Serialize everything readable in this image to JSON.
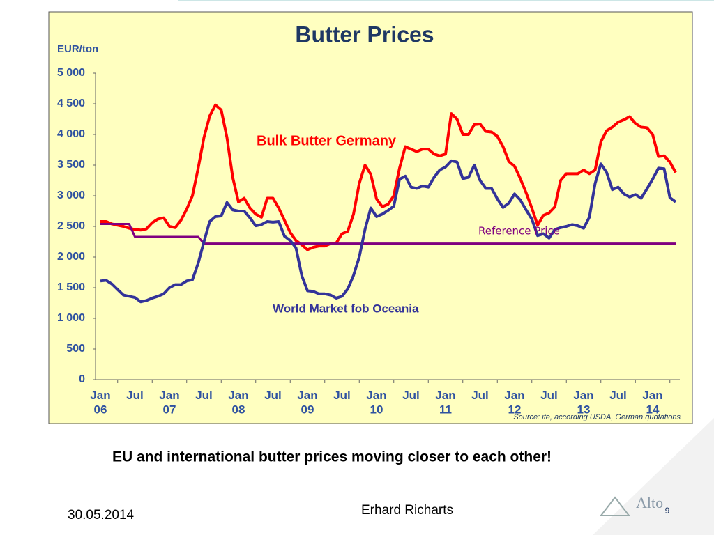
{
  "chart_data": {
    "type": "line",
    "title": "Butter Prices",
    "y_label": "EUR/ton",
    "source": "Source: ife, according USDA, German quotations",
    "categories": [
      "Jan 06",
      null,
      null,
      null,
      null,
      null,
      "Jul",
      null,
      null,
      null,
      null,
      null,
      "Jan 07",
      null,
      null,
      null,
      null,
      null,
      "Jul",
      null,
      null,
      null,
      null,
      null,
      "Jan 08",
      null,
      null,
      null,
      null,
      null,
      "Jul",
      null,
      null,
      null,
      null,
      null,
      "Jan 09",
      null,
      null,
      null,
      null,
      null,
      "Jul",
      null,
      null,
      null,
      null,
      null,
      "Jan 10",
      null,
      null,
      null,
      null,
      null,
      "Jul",
      null,
      null,
      null,
      null,
      null,
      "Jan 11",
      null,
      null,
      null,
      null,
      null,
      "Jul",
      null,
      null,
      null,
      null,
      null,
      "Jan 12",
      null,
      null,
      null,
      null,
      null,
      "Jul",
      null,
      null,
      null,
      null,
      null,
      "Jan 13",
      null,
      null,
      null,
      null,
      null,
      "Jul",
      null,
      null,
      null,
      null,
      null,
      "Jan 14",
      null,
      null,
      null,
      null
    ],
    "series": [
      {
        "name": "Bulk Butter Germany",
        "color": "#ff0000",
        "values": [
          2580,
          2580,
          2540,
          2520,
          2500,
          2470,
          2450,
          2440,
          2460,
          2560,
          2620,
          2640,
          2500,
          2480,
          2600,
          2780,
          3000,
          3450,
          3950,
          4300,
          4480,
          4400,
          3950,
          3300,
          2900,
          2960,
          2800,
          2700,
          2650,
          2960,
          2960,
          2800,
          2600,
          2400,
          2270,
          2200,
          2120,
          2160,
          2180,
          2180,
          2220,
          2230,
          2380,
          2420,
          2700,
          3200,
          3500,
          3350,
          2950,
          2820,
          2860,
          3000,
          3450,
          3800,
          3760,
          3720,
          3760,
          3760,
          3680,
          3650,
          3680,
          4340,
          4250,
          4000,
          4000,
          4160,
          4170,
          4050,
          4040,
          3970,
          3800,
          3560,
          3480,
          3280,
          3050,
          2800,
          2520,
          2680,
          2720,
          2820,
          3250,
          3360,
          3360,
          3360,
          3420,
          3360,
          3420,
          3880,
          4060,
          4120,
          4200,
          4240,
          4290,
          4180,
          4120,
          4110,
          4000,
          3640,
          3650,
          3550,
          3380
        ]
      },
      {
        "name": "Reference Price",
        "color": "#800080",
        "values": [
          2540,
          2540,
          2540,
          2540,
          2540,
          2540,
          2330,
          2330,
          2330,
          2330,
          2330,
          2330,
          2330,
          2330,
          2330,
          2330,
          2330,
          2330,
          2220,
          2220,
          2220,
          2220,
          2220,
          2220,
          2220,
          2220,
          2220,
          2220,
          2220,
          2220,
          2220,
          2220,
          2220,
          2220,
          2220,
          2220,
          2220,
          2220,
          2220,
          2220,
          2220,
          2220,
          2220,
          2220,
          2220,
          2220,
          2220,
          2220,
          2220,
          2220,
          2220,
          2220,
          2220,
          2220,
          2220,
          2220,
          2220,
          2220,
          2220,
          2220,
          2220,
          2220,
          2220,
          2220,
          2220,
          2220,
          2220,
          2220,
          2220,
          2220,
          2220,
          2220,
          2220,
          2220,
          2220,
          2220,
          2220,
          2220,
          2220,
          2220,
          2220,
          2220,
          2220,
          2220,
          2220,
          2220,
          2220,
          2220,
          2220,
          2220,
          2220,
          2220,
          2220,
          2220,
          2220,
          2220,
          2220,
          2220,
          2220,
          2220,
          2220
        ]
      },
      {
        "name": "World Market fob Oceania",
        "color": "#333399",
        "values": [
          1610,
          1620,
          1560,
          1470,
          1380,
          1360,
          1340,
          1270,
          1290,
          1330,
          1360,
          1400,
          1500,
          1550,
          1550,
          1610,
          1630,
          1900,
          2250,
          2580,
          2660,
          2670,
          2890,
          2770,
          2750,
          2750,
          2640,
          2510,
          2530,
          2580,
          2570,
          2580,
          2340,
          2270,
          2150,
          1700,
          1450,
          1440,
          1400,
          1400,
          1380,
          1330,
          1360,
          1480,
          1700,
          2000,
          2450,
          2800,
          2660,
          2700,
          2760,
          2830,
          3270,
          3320,
          3140,
          3120,
          3160,
          3140,
          3300,
          3420,
          3470,
          3570,
          3550,
          3280,
          3300,
          3500,
          3250,
          3120,
          3120,
          2950,
          2810,
          2880,
          3030,
          2930,
          2770,
          2620,
          2350,
          2380,
          2310,
          2450,
          2480,
          2500,
          2530,
          2510,
          2470,
          2650,
          3200,
          3520,
          3380,
          3100,
          3140,
          3030,
          2980,
          3020,
          2960,
          3110,
          3270,
          3450,
          3440,
          2970,
          2900
        ]
      }
    ],
    "ylim": [
      0,
      5000
    ],
    "yticks": [
      0,
      500,
      {
        "value": 1000,
        "label": "1 000"
      },
      {
        "value": 1500,
        "label": "1 500"
      },
      {
        "value": 2000,
        "label": "2 000"
      },
      {
        "value": 2500,
        "label": "2 500"
      },
      {
        "value": 3000,
        "label": "3 000"
      },
      {
        "value": 3500,
        "label": "3 500"
      },
      {
        "value": 4000,
        "label": "4 000"
      },
      {
        "value": 4500,
        "label": "4 500"
      },
      {
        "value": 5000,
        "label": "5 000"
      }
    ],
    "grid": false,
    "background": "#ffffc0"
  },
  "slide": {
    "caption": "EU and international butter prices moving closer to each other!",
    "date": "30.05.2014",
    "author": "Erhard Richarts",
    "page_number": "9",
    "logo": "Alto"
  }
}
